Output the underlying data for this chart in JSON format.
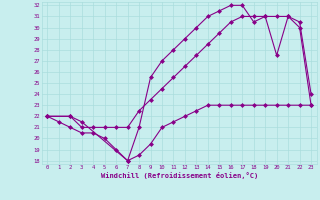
{
  "xlabel": "Windchill (Refroidissement éolien,°C)",
  "xlim": [
    -0.5,
    23.5
  ],
  "ylim": [
    17.7,
    32.3
  ],
  "xticks": [
    0,
    1,
    2,
    3,
    4,
    5,
    6,
    7,
    8,
    9,
    10,
    11,
    12,
    13,
    14,
    15,
    16,
    17,
    18,
    19,
    20,
    21,
    22,
    23
  ],
  "yticks": [
    18,
    19,
    20,
    21,
    22,
    23,
    24,
    25,
    26,
    27,
    28,
    29,
    30,
    31,
    32
  ],
  "bg_color": "#c8eeee",
  "grid_color": "#aadddd",
  "line_color": "#880088",
  "line1_x": [
    0,
    1,
    2,
    3,
    4,
    5,
    6,
    7,
    8,
    9,
    10,
    11,
    12,
    13,
    14,
    15,
    16,
    17,
    18,
    19,
    20,
    21,
    22,
    23
  ],
  "line1_y": [
    22,
    21.5,
    21,
    20.5,
    20.5,
    20,
    19,
    18,
    18.5,
    19.5,
    21,
    21.5,
    22,
    22.5,
    23,
    23,
    23,
    23,
    23,
    23,
    23,
    23,
    23,
    23
  ],
  "line2_x": [
    0,
    2,
    3,
    7,
    8,
    9,
    10,
    11,
    12,
    13,
    14,
    15,
    16,
    17,
    18,
    19,
    20,
    21,
    22,
    23
  ],
  "line2_y": [
    22,
    22,
    21.5,
    18,
    21,
    25.5,
    27,
    28,
    29,
    30,
    31,
    31.5,
    32,
    32,
    30.5,
    31,
    27.5,
    31,
    30.5,
    24
  ],
  "line3_x": [
    0,
    2,
    3,
    4,
    5,
    6,
    7,
    8,
    9,
    10,
    11,
    12,
    13,
    14,
    15,
    16,
    17,
    18,
    19,
    20,
    21,
    22,
    23
  ],
  "line3_y": [
    22,
    22,
    21,
    21,
    21,
    21,
    21,
    22.5,
    23.5,
    24.5,
    25.5,
    26.5,
    27.5,
    28.5,
    29.5,
    30.5,
    31,
    31,
    31,
    31,
    31,
    30,
    23
  ]
}
